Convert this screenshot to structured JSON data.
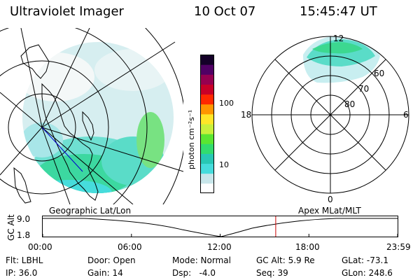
{
  "header": {
    "instrument": "Ultraviolet Imager",
    "date": "10 Oct 07",
    "time": "15:45:47 UT"
  },
  "colorbar": {
    "unit_label": "photon cm⁻²s⁻¹",
    "ticks": [
      {
        "value": 100,
        "label": "100"
      },
      {
        "value": 10,
        "label": "10"
      }
    ],
    "colors": [
      "#ffffff",
      "#c8e6ea",
      "#46dcdc",
      "#28c8b4",
      "#32dc6e",
      "#5ae632",
      "#c8f03c",
      "#ffe628",
      "#ff9600",
      "#ff2800",
      "#c80028",
      "#960050",
      "#500064",
      "#140028"
    ]
  },
  "polar": {
    "lat_labels": [
      "80",
      "70",
      "60"
    ],
    "mlt_labels": {
      "top": "12",
      "left": "18",
      "right": "6",
      "bottom": "0"
    }
  },
  "map_labels": {
    "left": "Geographic Lat/Lon",
    "right": "Apex MLat/MLT"
  },
  "alt_plot": {
    "ylabel": "GC Alt",
    "yticks": [
      "9.0",
      "1.8"
    ],
    "xticks": [
      "00:00",
      "06:00",
      "12:00",
      "18:00",
      "23:59"
    ],
    "current_time_hours": 15.76,
    "marker_color": "#cc0000"
  },
  "footer": {
    "row1": [
      "Flt: LBHL",
      "Door: Open",
      "Mode: Normal",
      "GC Alt: 5.9 Re",
      "GLat: -73.1"
    ],
    "row2": [
      "IP: 36.0",
      "Gain: 14",
      "Dsp:   -4.0",
      "Seq: 39",
      "GLon: 248.6"
    ]
  }
}
